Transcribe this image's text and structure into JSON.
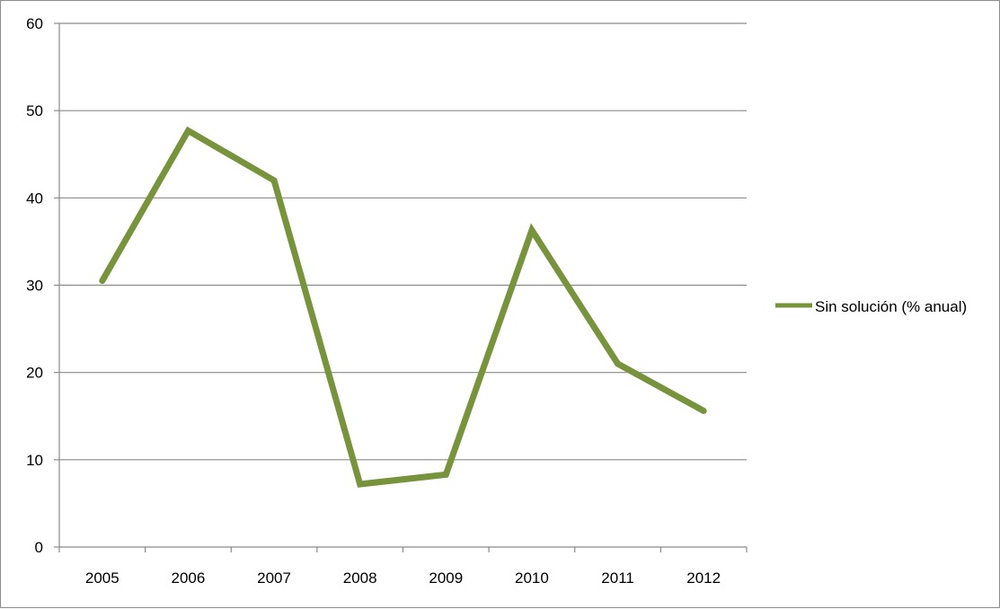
{
  "chart_data": {
    "type": "line",
    "categories": [
      "2005",
      "2006",
      "2007",
      "2008",
      "2009",
      "2010",
      "2011",
      "2012"
    ],
    "series": [
      {
        "name": "Sin solución (% anual)",
        "values": [
          30.5,
          47.7,
          42,
          7.2,
          8.3,
          36.3,
          21,
          15.6
        ],
        "color": "#77933c"
      }
    ],
    "ylim": [
      0,
      60
    ],
    "yticks": [
      "0",
      "10",
      "20",
      "30",
      "40",
      "50",
      "60"
    ],
    "grid": true,
    "legend": "right",
    "title": "",
    "xlabel": "",
    "ylabel": ""
  }
}
